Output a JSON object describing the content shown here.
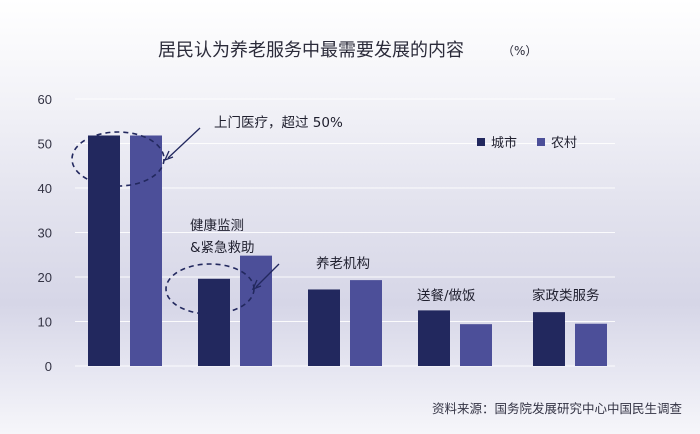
{
  "chart_data": {
    "type": "bar",
    "title": "居民认为养老服务中最需要发展的内容",
    "unit": "（%）",
    "categories": [
      "上门医疗",
      "健康监测 &紧急救助",
      "养老机构",
      "送餐/做饭",
      "家政类服务"
    ],
    "category_labels": [
      [],
      [
        "健康监测",
        "&紧急救助"
      ],
      [
        "养老机构"
      ],
      [
        "送餐/做饭"
      ],
      [
        "家政类服务"
      ]
    ],
    "series": [
      {
        "name": "城市",
        "values": [
          51.8,
          19.6,
          17.2,
          12.5,
          12.1
        ],
        "color": "#22285e"
      },
      {
        "name": "农村",
        "values": [
          51.8,
          24.8,
          19.3,
          9.4,
          9.5
        ],
        "color": "#4c4f99"
      }
    ],
    "ylim": [
      0,
      60
    ],
    "yticks": [
      0,
      10,
      20,
      30,
      40,
      50,
      60
    ],
    "grid": true,
    "legend_position": "top-right",
    "annotations": [
      {
        "text": "上门医疗，超过 50%",
        "target_category": 0,
        "circled": true
      },
      {
        "text": "",
        "target_category": 1,
        "circled": true
      }
    ],
    "source": "资料来源：国务院发展研究中心中国民生调查"
  }
}
